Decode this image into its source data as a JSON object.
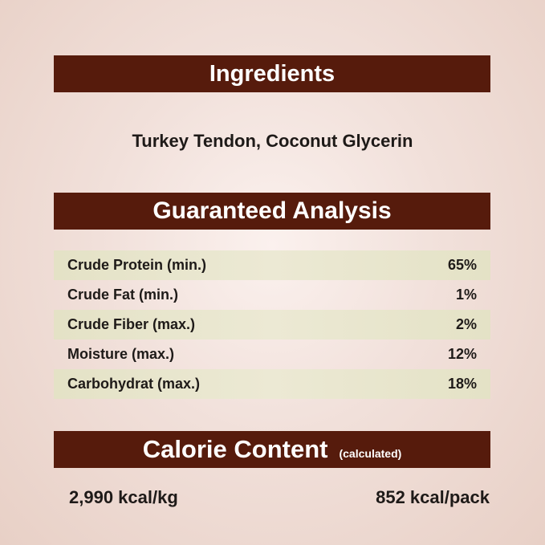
{
  "ingredients": {
    "title": "Ingredients",
    "text": "Turkey Tendon, Coconut Glycerin"
  },
  "analysis": {
    "title": "Guaranteed Analysis",
    "rows": [
      {
        "label": "Crude Protein (min.)",
        "value": "65%"
      },
      {
        "label": "Crude Fat (min.)",
        "value": "1%"
      },
      {
        "label": "Crude Fiber (max.)",
        "value": "2%"
      },
      {
        "label": "Moisture (max.)",
        "value": "12%"
      },
      {
        "label": "Carbohydrat (max.)",
        "value": "18%"
      }
    ]
  },
  "calorie": {
    "title": "Calorie Content",
    "subtitle": "(calculated)",
    "per_kg": "2,990 kcal/kg",
    "per_pack": "852 kcal/pack"
  },
  "colors": {
    "banner": "#561b0c",
    "stripe": "#e4e2c6",
    "background": "#f1e0da"
  }
}
